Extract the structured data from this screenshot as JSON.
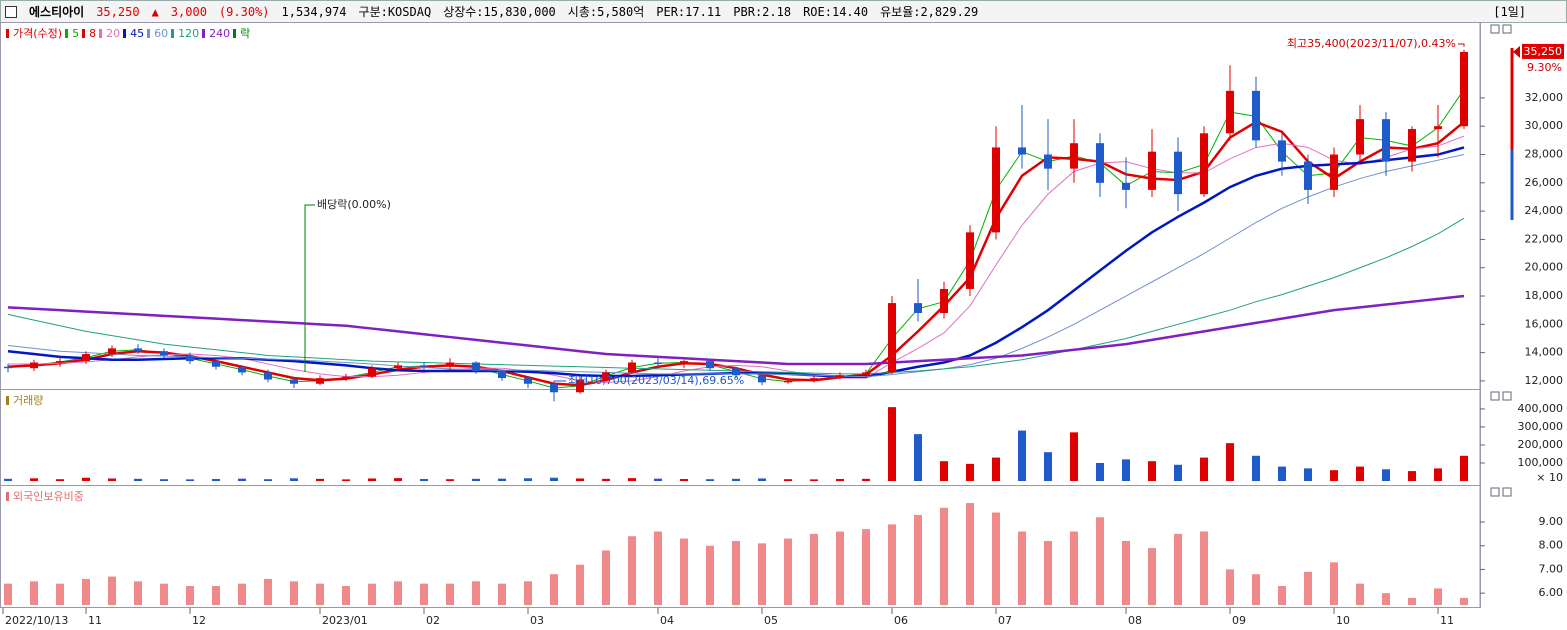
{
  "header": {
    "name": "에스티아이",
    "price": "35,250",
    "arrow": "▲",
    "change": "3,000",
    "change_pct": "(9.30%)",
    "volume": "1,534,974",
    "market": "구분:KOSDAQ",
    "shares": "상장수:15,830,000",
    "cap": "시총:5,580억",
    "per": "PER:17.11",
    "pbr": "PBR:2.18",
    "roe": "ROE:14.40",
    "reserve": "유보율:2,829.29",
    "period": "[1일]"
  },
  "chart_data": [
    {
      "type": "candlestick",
      "title": "가격(수정)",
      "title_color": "#e00000",
      "up_color": "#e00000",
      "down_color": "#1e5ac8",
      "categories": [
        "2022/10/13",
        null,
        null,
        "11",
        null,
        null,
        null,
        "12",
        null,
        null,
        null,
        null,
        "2023/01",
        null,
        null,
        null,
        "02",
        null,
        null,
        null,
        "03",
        null,
        null,
        null,
        null,
        "04",
        null,
        null,
        null,
        "05",
        null,
        null,
        null,
        null,
        "06",
        null,
        null,
        null,
        "07",
        null,
        null,
        null,
        null,
        "08",
        null,
        null,
        null,
        "09",
        null,
        null,
        null,
        "10",
        null,
        null,
        null,
        "11",
        null
      ],
      "open": [
        13000,
        12900,
        13300,
        13400,
        13900,
        14300,
        14100,
        13800,
        13400,
        13000,
        12600,
        12100,
        11800,
        12200,
        12300,
        12900,
        13100,
        13000,
        13300,
        12700,
        12200,
        11800,
        11200,
        12100,
        12600,
        13300,
        13200,
        13400,
        12900,
        12400,
        11900,
        12000,
        12200,
        12400,
        12600,
        17500,
        16800,
        18500,
        22500,
        28500,
        28000,
        27000,
        28800,
        26000,
        25500,
        28200,
        25200,
        29500,
        32500,
        29000,
        27500,
        25500,
        28000,
        30500,
        27500,
        29800,
        30000
      ],
      "high": [
        13200,
        13500,
        13700,
        14100,
        14500,
        14600,
        14300,
        14000,
        13500,
        13100,
        12800,
        12300,
        12400,
        12500,
        13100,
        13300,
        13300,
        13600,
        13400,
        12800,
        12300,
        11900,
        12300,
        12800,
        13500,
        13600,
        13500,
        13500,
        13000,
        12500,
        12200,
        12400,
        12600,
        12800,
        18000,
        19200,
        19000,
        23000,
        30000,
        31500,
        30500,
        30500,
        29500,
        27800,
        29800,
        29200,
        30000,
        34300,
        33500,
        29500,
        28000,
        28500,
        31500,
        31000,
        30000,
        31500,
        35400
      ],
      "low": [
        12600,
        12700,
        13000,
        13200,
        13700,
        13900,
        13600,
        13200,
        12800,
        12400,
        11900,
        11500,
        11700,
        12000,
        12200,
        12700,
        12800,
        12800,
        12500,
        12000,
        11500,
        10700,
        11100,
        12000,
        12500,
        13000,
        12900,
        12700,
        12200,
        11700,
        11800,
        11900,
        12100,
        12300,
        12500,
        16200,
        16400,
        18000,
        22000,
        27000,
        25500,
        26000,
        25000,
        24200,
        25000,
        24000,
        25000,
        29000,
        28500,
        26500,
        24500,
        25000,
        27500,
        26500,
        26800,
        27800,
        29800
      ],
      "close": [
        12900,
        13300,
        13400,
        13900,
        14300,
        14100,
        13800,
        13400,
        13000,
        12600,
        12100,
        11800,
        12200,
        12300,
        12900,
        13100,
        13000,
        13300,
        12700,
        12200,
        11800,
        11200,
        12100,
        12600,
        13300,
        13200,
        13400,
        12900,
        12400,
        11900,
        12000,
        12200,
        12400,
        12600,
        17500,
        16800,
        18500,
        22500,
        28500,
        28000,
        27000,
        28800,
        26000,
        25500,
        28200,
        25200,
        29500,
        32500,
        29000,
        27500,
        25500,
        28000,
        30500,
        27500,
        29800,
        30000,
        35250
      ],
      "series": [
        {
          "name": "5",
          "color": "#00b000",
          "width": 1,
          "values": [
            12950,
            13100,
            13350,
            13650,
            14100,
            14200,
            13950,
            13600,
            13200,
            12800,
            12350,
            11950,
            12000,
            12250,
            12600,
            13000,
            13050,
            13150,
            12950,
            12450,
            12000,
            11500,
            11650,
            12350,
            12950,
            13250,
            13300,
            13150,
            12650,
            12150,
            11950,
            12100,
            12300,
            12500,
            15000,
            17100,
            17600,
            20500,
            25500,
            28200,
            27500,
            27900,
            27400,
            25800,
            26800,
            26700,
            27300,
            31000,
            30700,
            28200,
            26500,
            26700,
            29200,
            29000,
            28600,
            29900,
            32600
          ]
        },
        {
          "name": "8",
          "color": "#e00000",
          "width": 2.5,
          "values": [
            13000,
            13100,
            13250,
            13500,
            13900,
            14100,
            14000,
            13750,
            13400,
            13000,
            12600,
            12200,
            12050,
            12150,
            12450,
            12800,
            13000,
            13100,
            13000,
            12700,
            12250,
            11800,
            11700,
            12050,
            12600,
            13000,
            13250,
            13200,
            12900,
            12450,
            12100,
            12050,
            12250,
            12450,
            13800,
            15500,
            17300,
            19300,
            23500,
            26500,
            27800,
            27700,
            27500,
            26600,
            26300,
            26200,
            26800,
            29200,
            30300,
            29600,
            27500,
            26300,
            27500,
            28500,
            28400,
            28800,
            30300
          ]
        },
        {
          "name": "20",
          "color": "#e070c0",
          "width": 1,
          "values": [
            13200,
            13200,
            13250,
            13350,
            13500,
            13700,
            13850,
            13900,
            13800,
            13600,
            13200,
            12800,
            12500,
            12300,
            12300,
            12400,
            12600,
            12800,
            12900,
            12900,
            12700,
            12400,
            12000,
            11900,
            12000,
            12300,
            12700,
            13000,
            13100,
            13000,
            12700,
            12400,
            12200,
            12200,
            13300,
            14300,
            15400,
            17300,
            20200,
            23000,
            25200,
            26800,
            27400,
            27500,
            27000,
            26700,
            26700,
            27700,
            28500,
            28800,
            28500,
            27600,
            27300,
            27800,
            28400,
            28600,
            29300
          ]
        },
        {
          "name": "45",
          "color": "#0018c0",
          "width": 2.5,
          "values": [
            14100,
            13900,
            13700,
            13600,
            13500,
            13500,
            13550,
            13600,
            13600,
            13600,
            13500,
            13400,
            13250,
            13100,
            12900,
            12750,
            12700,
            12700,
            12700,
            12700,
            12650,
            12550,
            12400,
            12350,
            12350,
            12400,
            12450,
            12500,
            12550,
            12550,
            12500,
            12400,
            12300,
            12300,
            12650,
            13000,
            13300,
            13800,
            14700,
            15800,
            17000,
            18400,
            19800,
            21200,
            22500,
            23600,
            24600,
            25700,
            26500,
            27000,
            27200,
            27300,
            27400,
            27600,
            27800,
            28000,
            28500
          ]
        },
        {
          "name": "60",
          "color": "#7090d0",
          "width": 1,
          "values": [
            14500,
            14300,
            14100,
            14000,
            13900,
            13800,
            13750,
            13700,
            13650,
            13600,
            13550,
            13500,
            13400,
            13300,
            13200,
            13050,
            12950,
            12850,
            12800,
            12750,
            12750,
            12700,
            12650,
            12600,
            12550,
            12500,
            12500,
            12500,
            12500,
            12500,
            12450,
            12400,
            12350,
            12300,
            12450,
            12650,
            12850,
            13150,
            13600,
            14300,
            15100,
            16000,
            17000,
            18000,
            19000,
            20000,
            21000,
            22100,
            23200,
            24200,
            25000,
            25700,
            26300,
            26800,
            27200,
            27600,
            28000
          ]
        },
        {
          "name": "120",
          "color": "#20a080",
          "width": 1,
          "values": [
            16700,
            16300,
            15900,
            15500,
            15200,
            14900,
            14600,
            14400,
            14200,
            14000,
            13800,
            13700,
            13600,
            13500,
            13400,
            13350,
            13300,
            13250,
            13200,
            13150,
            13100,
            13050,
            13000,
            12950,
            12900,
            12850,
            12800,
            12750,
            12700,
            12650,
            12600,
            12550,
            12500,
            12500,
            12600,
            12700,
            12850,
            13000,
            13250,
            13500,
            13850,
            14200,
            14600,
            15000,
            15500,
            16000,
            16500,
            17000,
            17600,
            18100,
            18700,
            19300,
            20000,
            20700,
            21500,
            22400,
            23500
          ]
        },
        {
          "name": "240",
          "color": "#8020c0",
          "width": 2.5,
          "values": [
            17200,
            17100,
            17000,
            16900,
            16800,
            16700,
            16600,
            16500,
            16400,
            16300,
            16200,
            16100,
            16000,
            15900,
            15700,
            15500,
            15300,
            15100,
            14900,
            14700,
            14500,
            14300,
            14100,
            13900,
            13800,
            13700,
            13600,
            13500,
            13400,
            13300,
            13200,
            13200,
            13200,
            13200,
            13300,
            13400,
            13500,
            13600,
            13700,
            13800,
            14000,
            14200,
            14400,
            14600,
            14900,
            15200,
            15500,
            15800,
            16100,
            16400,
            16700,
            17000,
            17200,
            17400,
            17600,
            17800,
            18000
          ]
        }
      ],
      "legend_extra": {
        "name": "락",
        "color": "#008000"
      },
      "ylim": [
        11500,
        36800
      ],
      "yticks": [
        {
          "value": 12000,
          "label": "12,000"
        },
        {
          "value": 14000,
          "label": "14,000"
        },
        {
          "value": 16000,
          "label": "16,000"
        },
        {
          "value": 18000,
          "label": "18,000"
        },
        {
          "value": 20000,
          "label": "20,000"
        },
        {
          "value": 22000,
          "label": "22,000"
        },
        {
          "value": 24000,
          "label": "24,000"
        },
        {
          "value": 26000,
          "label": "26,000"
        },
        {
          "value": 28000,
          "label": "28,000"
        },
        {
          "value": 30000,
          "label": "30,000"
        },
        {
          "value": 32000,
          "label": "32,000"
        }
      ],
      "annotations": {
        "high": "최고35,400(2023/11/07),0.43%",
        "low": "최저10,700(2023/03/14),69.65%",
        "dividend": "배당락(0.00%)"
      },
      "price_tag": {
        "price": "35,250",
        "change": "9.30%"
      }
    },
    {
      "type": "bar",
      "title": "거래량",
      "title_color": "#a08020",
      "values": [
        12000,
        15000,
        10000,
        18000,
        14000,
        12000,
        10000,
        9000,
        11000,
        13000,
        10000,
        15000,
        12000,
        9000,
        14000,
        16000,
        11000,
        10000,
        12000,
        13000,
        15000,
        18000,
        14000,
        12000,
        16000,
        13000,
        11000,
        10000,
        12000,
        14000,
        10000,
        9000,
        11000,
        12000,
        410000,
        260000,
        110000,
        95000,
        130000,
        280000,
        160000,
        270000,
        100000,
        120000,
        110000,
        90000,
        130000,
        210000,
        140000,
        80000,
        70000,
        60000,
        80000,
        65000,
        55000,
        70000,
        140000
      ],
      "ylim": [
        0,
        494000
      ],
      "yticks": [
        {
          "value": 100000,
          "label": "100,000"
        },
        {
          "value": 200000,
          "label": "200,000"
        },
        {
          "value": 300000,
          "label": "300,000"
        },
        {
          "value": 400000,
          "label": "400,000"
        }
      ],
      "unit_label": "× 10"
    },
    {
      "type": "bar",
      "title": "외국인보유비중",
      "title_color": "#e07070",
      "color": "#f08a8a",
      "values": [
        6.4,
        6.5,
        6.4,
        6.6,
        6.7,
        6.5,
        6.4,
        6.3,
        6.3,
        6.4,
        6.6,
        6.5,
        6.4,
        6.3,
        6.4,
        6.5,
        6.4,
        6.4,
        6.5,
        6.4,
        6.5,
        6.8,
        7.2,
        7.8,
        8.4,
        8.6,
        8.3,
        8.0,
        8.2,
        8.1,
        8.3,
        8.5,
        8.6,
        8.7,
        8.9,
        9.3,
        9.6,
        9.8,
        9.4,
        8.6,
        8.2,
        8.6,
        9.2,
        8.2,
        7.9,
        8.5,
        8.6,
        7.0,
        6.8,
        6.3,
        6.9,
        7.3,
        6.4,
        6.0,
        5.8,
        6.2,
        5.8
      ],
      "ylim": [
        5.5,
        10.35
      ],
      "yticks": [
        {
          "value": 6,
          "label": "6.00"
        },
        {
          "value": 7,
          "label": "7.00"
        },
        {
          "value": 8,
          "label": "8.00"
        },
        {
          "value": 9,
          "label": "9.00"
        }
      ]
    }
  ]
}
